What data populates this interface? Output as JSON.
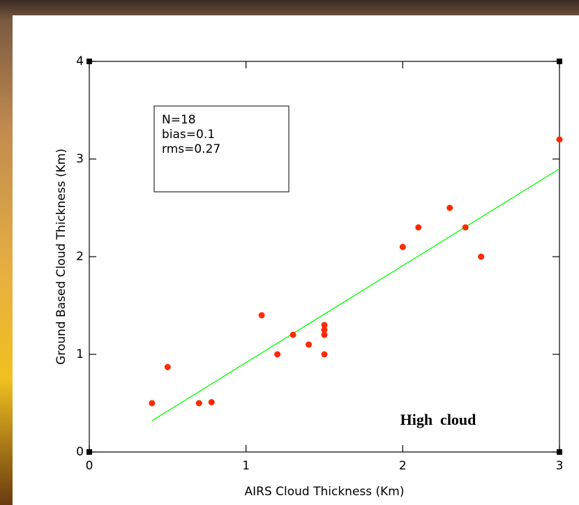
{
  "chart_data": {
    "type": "scatter",
    "xlabel": "AIRS Cloud Thickness (Km)",
    "ylabel": "Ground Based Cloud Thickness (Km)",
    "stats": [
      "N=18",
      "bias=0.1",
      "rms=0.27"
    ],
    "annotation": "High  cloud",
    "x": [
      0.4,
      0.5,
      0.7,
      0.78,
      1.1,
      1.2,
      1.3,
      1.4,
      1.5,
      1.5,
      1.5,
      1.5,
      2.0,
      2.1,
      2.3,
      2.4,
      2.5,
      3.0
    ],
    "values": [
      0.5,
      0.87,
      0.5,
      0.51,
      1.4,
      1.0,
      1.2,
      1.1,
      1.3,
      1.25,
      1.2,
      1.0,
      2.1,
      2.3,
      2.5,
      2.3,
      2.0,
      3.2
    ],
    "color": "#ff2a00",
    "fit_line": {
      "x": [
        0.4,
        3.0
      ],
      "y": [
        0.32,
        2.9
      ],
      "color": "#00ff00"
    },
    "xlim": [
      0,
      3
    ],
    "xticks": [
      0,
      1,
      2,
      3
    ],
    "ylim": [
      0,
      4
    ],
    "yticks": [
      0,
      1,
      2,
      3,
      4
    ]
  }
}
